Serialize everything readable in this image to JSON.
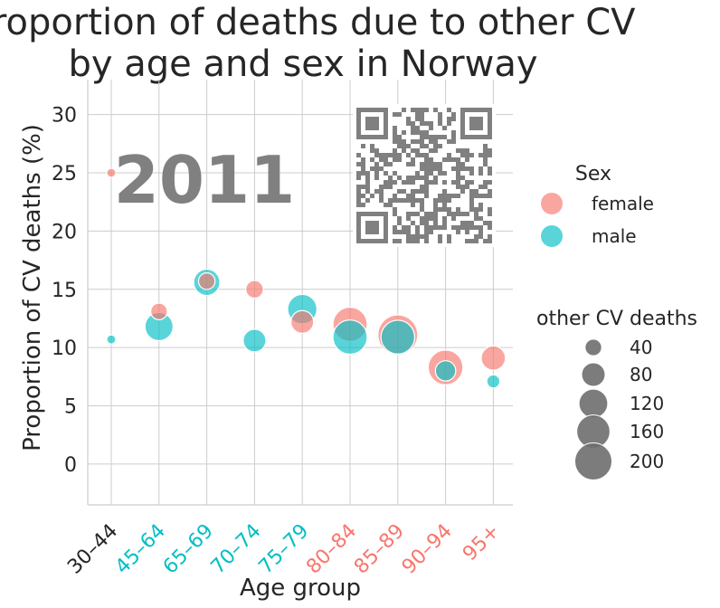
{
  "chart_data": {
    "type": "scatter",
    "title_lines": [
      "Proportion of deaths due to other CV",
      "by age and sex in Norway"
    ],
    "xlabel": "Age group",
    "ylabel": "Proportion of CV deaths (%)",
    "year": "2011",
    "categories": [
      "30–44",
      "45–64",
      "65–69",
      "70–74",
      "75–79",
      "80–84",
      "85–89",
      "90–94",
      "95+"
    ],
    "category_colors": [
      "#262626",
      "#00BFC4",
      "#00BFC4",
      "#00BFC4",
      "#00BFC4",
      "#F8766D",
      "#F8766D",
      "#F8766D",
      "#F8766D"
    ],
    "ylim": [
      -3.5,
      33
    ],
    "yticks": [
      0,
      5,
      10,
      15,
      20,
      25,
      30
    ],
    "grid": true,
    "series": [
      {
        "name": "female",
        "color": "#F8766D",
        "values": [
          25.0,
          13.1,
          15.7,
          15.0,
          12.2,
          12.0,
          11.1,
          8.3,
          9.1
        ],
        "sizes": [
          12,
          40,
          40,
          45,
          75,
          170,
          230,
          175,
          85
        ]
      },
      {
        "name": "male",
        "color": "#00BFC4",
        "values": [
          10.7,
          11.8,
          15.6,
          10.6,
          13.3,
          10.9,
          10.9,
          8.0,
          7.1
        ],
        "sizes": [
          12,
          115,
          100,
          75,
          125,
          170,
          165,
          60,
          25
        ]
      }
    ],
    "legend_sex": {
      "title": "Sex",
      "items": [
        {
          "label": "female",
          "color": "#F8766D"
        },
        {
          "label": "male",
          "color": "#00BFC4"
        }
      ]
    },
    "legend_size": {
      "title": "other CV deaths",
      "color": "#6e6e6e",
      "items": [
        {
          "label": "40",
          "value": 40
        },
        {
          "label": "80",
          "value": 80
        },
        {
          "label": "120",
          "value": 120
        },
        {
          "label": "160",
          "value": 160
        },
        {
          "label": "200",
          "value": 200
        }
      ]
    },
    "legend_placement": "right"
  }
}
